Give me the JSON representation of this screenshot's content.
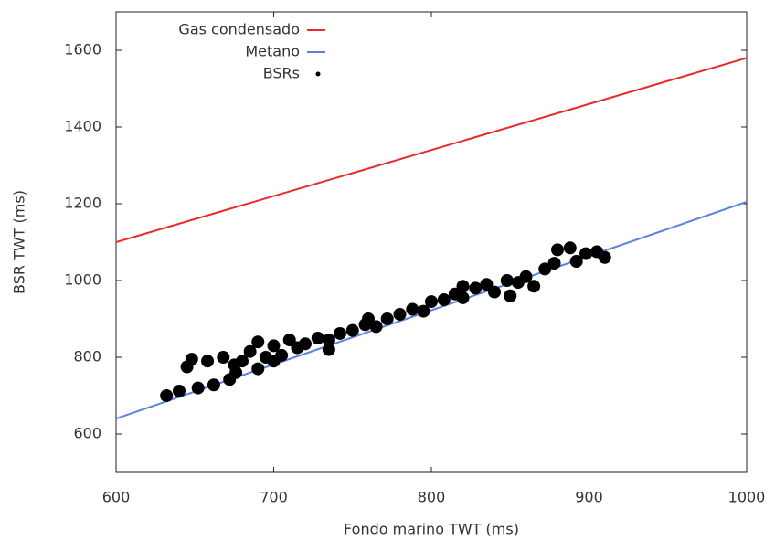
{
  "chart_data": {
    "type": "line",
    "xlabel": "Fondo marino TWT (ms)",
    "ylabel": "BSR TWT (ms)",
    "xlim": [
      600,
      1000
    ],
    "xticks": [
      600,
      700,
      800,
      900,
      1000
    ],
    "ylim": [
      500,
      1700
    ],
    "yticks": [
      600,
      800,
      1000,
      1200,
      1400,
      1600
    ],
    "legend": "upper left",
    "series": [
      {
        "name": "Gas condensado",
        "type": "line",
        "color": "#e8282a",
        "x": [
          600,
          1000
        ],
        "values": [
          1100,
          1580
        ]
      },
      {
        "name": "Metano",
        "type": "line",
        "color": "#5a80e0",
        "x": [
          600,
          1000
        ],
        "values": [
          640,
          1205
        ]
      },
      {
        "name": "BSRs",
        "type": "scatter",
        "color": "#000000",
        "x": [
          632,
          640,
          645,
          648,
          652,
          658,
          662,
          668,
          672,
          676,
          680,
          685,
          690,
          695,
          700,
          705,
          710,
          715,
          720,
          728,
          735,
          742,
          750,
          758,
          765,
          772,
          780,
          788,
          795,
          800,
          808,
          815,
          820,
          828,
          835,
          840,
          848,
          855,
          860,
          865,
          872,
          878,
          880,
          888,
          892,
          898,
          905,
          910,
          700,
          690,
          760,
          820,
          850,
          735,
          675
        ],
        "values": [
          700,
          712,
          775,
          795,
          720,
          790,
          728,
          800,
          742,
          760,
          790,
          815,
          770,
          800,
          830,
          805,
          845,
          825,
          835,
          850,
          845,
          862,
          870,
          885,
          880,
          900,
          912,
          925,
          920,
          945,
          950,
          965,
          955,
          980,
          990,
          970,
          1000,
          995,
          1010,
          985,
          1030,
          1045,
          1080,
          1085,
          1050,
          1070,
          1075,
          1060,
          790,
          840,
          900,
          985,
          960,
          820,
          780
        ]
      }
    ]
  }
}
